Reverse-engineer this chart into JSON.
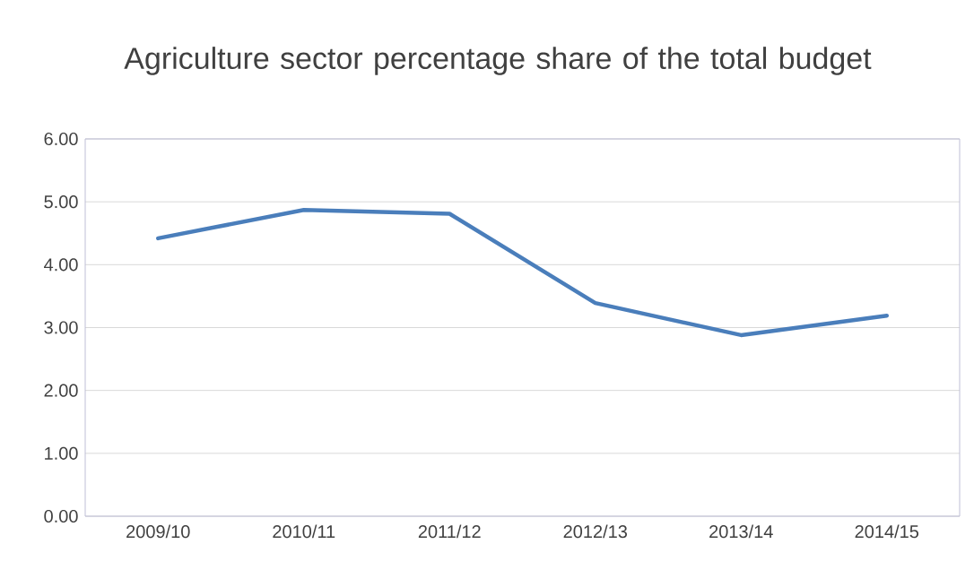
{
  "chart_data": {
    "type": "line",
    "title": "Agriculture sector percentage share of the total budget",
    "categories": [
      "2009/10",
      "2010/11",
      "2011/12",
      "2012/13",
      "2013/14",
      "2014/15"
    ],
    "values": [
      4.42,
      4.87,
      4.81,
      3.39,
      2.88,
      3.19
    ],
    "color": "#4a7ebb",
    "ylim": [
      0,
      6
    ],
    "yticks": [
      {
        "value": 0,
        "label": "0.00"
      },
      {
        "value": 1,
        "label": "1.00"
      },
      {
        "value": 2,
        "label": "2.00"
      },
      {
        "value": 3,
        "label": "3.00"
      },
      {
        "value": 4,
        "label": "4.00"
      },
      {
        "value": 5,
        "label": "5.00"
      },
      {
        "value": 6,
        "label": "6.00"
      }
    ],
    "grid": "y",
    "marker": "none"
  }
}
